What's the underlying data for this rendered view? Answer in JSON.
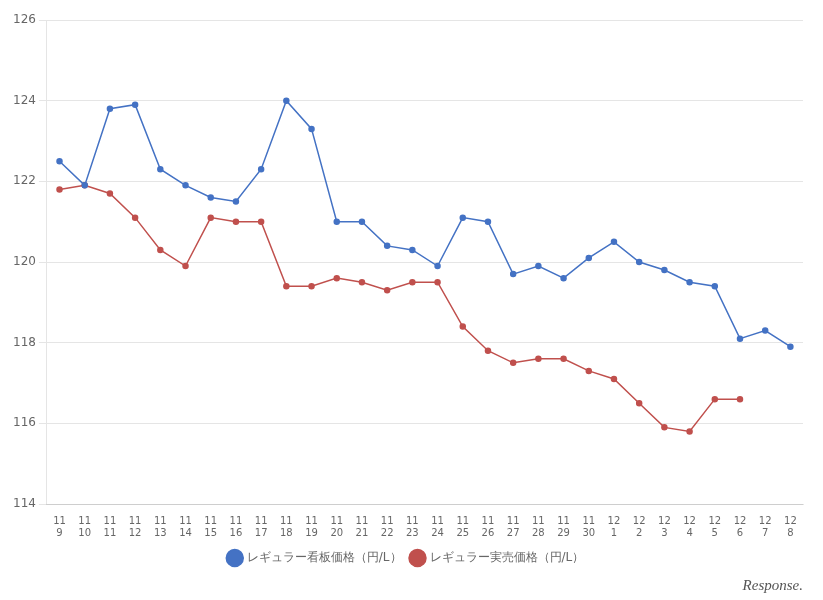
{
  "chart_data": {
    "type": "line",
    "categories": [
      [
        "11",
        "9"
      ],
      [
        "11",
        "10"
      ],
      [
        "11",
        "11"
      ],
      [
        "11",
        "12"
      ],
      [
        "11",
        "13"
      ],
      [
        "11",
        "14"
      ],
      [
        "11",
        "15"
      ],
      [
        "11",
        "16"
      ],
      [
        "11",
        "17"
      ],
      [
        "11",
        "18"
      ],
      [
        "11",
        "19"
      ],
      [
        "11",
        "20"
      ],
      [
        "11",
        "21"
      ],
      [
        "11",
        "22"
      ],
      [
        "11",
        "23"
      ],
      [
        "11",
        "24"
      ],
      [
        "11",
        "25"
      ],
      [
        "11",
        "26"
      ],
      [
        "11",
        "27"
      ],
      [
        "11",
        "28"
      ],
      [
        "11",
        "29"
      ],
      [
        "11",
        "30"
      ],
      [
        "12",
        "1"
      ],
      [
        "12",
        "2"
      ],
      [
        "12",
        "3"
      ],
      [
        "12",
        "4"
      ],
      [
        "12",
        "5"
      ],
      [
        "12",
        "6"
      ],
      [
        "12",
        "7"
      ],
      [
        "12",
        "8"
      ]
    ],
    "series": [
      {
        "name": "レギュラー看板価格（円/L）",
        "color": "#4472C4",
        "marker": "circle",
        "values": [
          122.5,
          121.9,
          123.8,
          123.9,
          122.3,
          121.9,
          121.6,
          121.5,
          122.3,
          124.0,
          123.3,
          121.0,
          121.0,
          120.4,
          120.3,
          119.9,
          121.1,
          121.0,
          119.7,
          119.9,
          119.6,
          120.1,
          120.5,
          120.0,
          119.8,
          119.5,
          119.4,
          118.1,
          118.3,
          117.9
        ]
      },
      {
        "name": "レギュラー実売価格（円/L）",
        "color": "#C0504D",
        "marker": "circle",
        "values": [
          121.8,
          121.9,
          121.7,
          121.1,
          120.3,
          119.9,
          121.1,
          121.0,
          121.0,
          119.4,
          119.4,
          119.6,
          119.5,
          119.3,
          119.5,
          119.5,
          118.4,
          117.8,
          117.5,
          117.6,
          117.6,
          117.3,
          117.1,
          116.5,
          115.9,
          115.8,
          116.6,
          116.6,
          null,
          null
        ]
      }
    ],
    "ylim": [
      114,
      126
    ],
    "yticks": [
      114,
      116,
      118,
      120,
      122,
      124,
      126
    ],
    "grid": true,
    "legend": "bottom",
    "annotations": [
      "Response."
    ]
  }
}
